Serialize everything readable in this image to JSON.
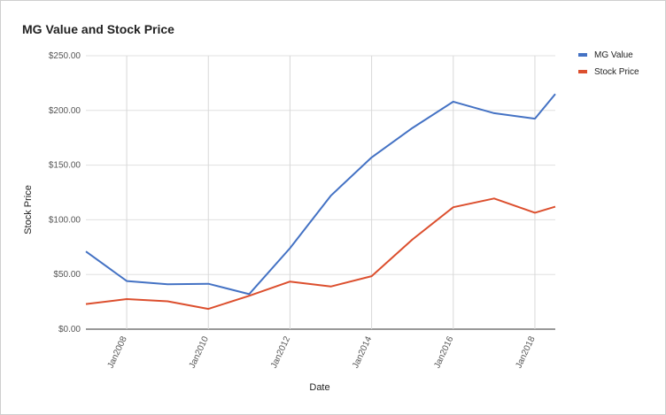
{
  "chart_data": {
    "type": "line",
    "title": "MG Value and Stock Price",
    "xlabel": "Date",
    "ylabel": "Stock Price",
    "x": [
      "2007-01",
      "2008-01",
      "2009-01",
      "2010-01",
      "2011-01",
      "2012-01",
      "2013-01",
      "2014-01",
      "2015-01",
      "2016-01",
      "2017-01",
      "2018-01",
      "2018-07"
    ],
    "x_ticks": [
      "Jan2008",
      "Jan2010",
      "Jan2012",
      "Jan2014",
      "Jan2016",
      "Jan2018"
    ],
    "y_ticks": [
      "$0.00",
      "$50.00",
      "$100.00",
      "$150.00",
      "$200.00",
      "$250.00"
    ],
    "ylim": [
      0,
      250
    ],
    "grid": true,
    "legend_position": "top-right",
    "series": [
      {
        "name": "MG Value",
        "color": "#4472c4",
        "values": [
          71,
          44,
          41,
          41.5,
          32,
          74,
          122,
          157,
          184,
          208,
          197.5,
          192.5,
          215
        ]
      },
      {
        "name": "Stock Price",
        "color": "#dc4f2e",
        "values": [
          23,
          27.5,
          25.5,
          18.5,
          30.5,
          43.5,
          39,
          48.5,
          82,
          111.5,
          119.5,
          106.5,
          112
        ]
      }
    ]
  }
}
